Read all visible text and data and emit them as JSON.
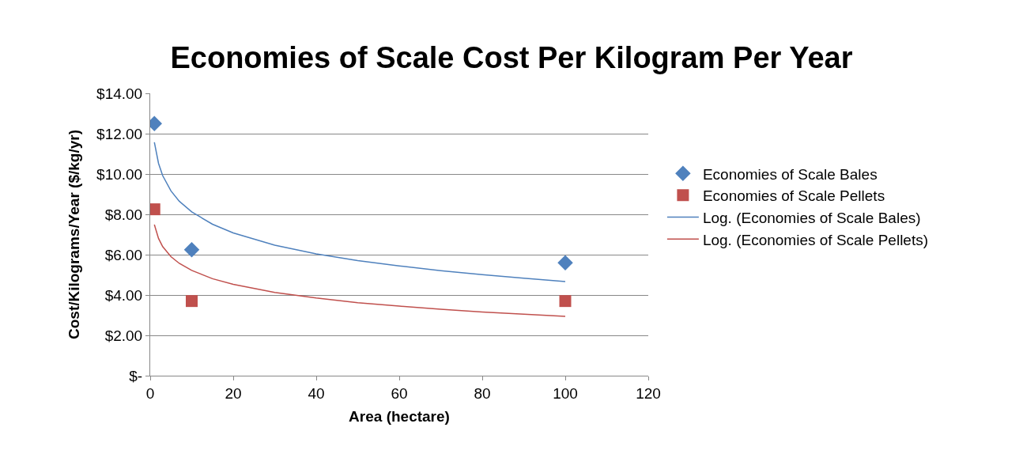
{
  "chart_data": {
    "type": "scatter",
    "title": "Economies of Scale Cost Per Kilogram Per Year",
    "xlabel": "Area (hectare)",
    "ylabel": "Cost/Kilograms/Year ($/kg/yr)",
    "xlim": [
      0,
      120
    ],
    "xticks": [
      0,
      20,
      40,
      60,
      80,
      100,
      120
    ],
    "ylim": [
      0,
      14
    ],
    "yticks": [
      {
        "value": 0,
        "label": "$-"
      },
      {
        "value": 2,
        "label": "$2.00"
      },
      {
        "value": 4,
        "label": "$4.00"
      },
      {
        "value": 6,
        "label": "$6.00"
      },
      {
        "value": 8,
        "label": "$8.00"
      },
      {
        "value": 10,
        "label": "$10.00"
      },
      {
        "value": 12,
        "label": "$12.00"
      },
      {
        "value": 14,
        "label": "$14.00"
      }
    ],
    "grid": "y",
    "legend": "right",
    "series": [
      {
        "name": "Economies of Scale Bales",
        "marker": "diamond",
        "color": "#4f81bd",
        "x": [
          1,
          10,
          100
        ],
        "values": [
          12.5,
          6.25,
          5.6
        ]
      },
      {
        "name": "Economies of Scale Pellets",
        "marker": "square",
        "color": "#c0504d",
        "x": [
          1,
          10,
          100
        ],
        "values": [
          8.25,
          3.7,
          3.7
        ]
      },
      {
        "name": "Log. (Economies of Scale Bales)",
        "type": "line",
        "marker": "none",
        "color": "#4f81bd",
        "x": [
          1,
          2,
          3,
          5,
          7,
          10,
          15,
          20,
          30,
          40,
          50,
          60,
          70,
          80,
          90,
          100
        ],
        "values": [
          11.57,
          10.53,
          9.92,
          9.16,
          8.65,
          8.12,
          7.51,
          7.08,
          6.47,
          6.04,
          5.71,
          5.44,
          5.21,
          5.01,
          4.83,
          4.67
        ]
      },
      {
        "name": "Log. (Economies of Scale Pellets)",
        "type": "line",
        "marker": "none",
        "color": "#c0504d",
        "x": [
          1,
          2,
          3,
          5,
          7,
          10,
          15,
          20,
          30,
          40,
          50,
          60,
          70,
          80,
          90,
          100
        ],
        "values": [
          7.49,
          6.81,
          6.4,
          5.9,
          5.57,
          5.22,
          4.81,
          4.53,
          4.13,
          3.85,
          3.62,
          3.45,
          3.29,
          3.16,
          3.05,
          2.94
        ]
      }
    ]
  }
}
